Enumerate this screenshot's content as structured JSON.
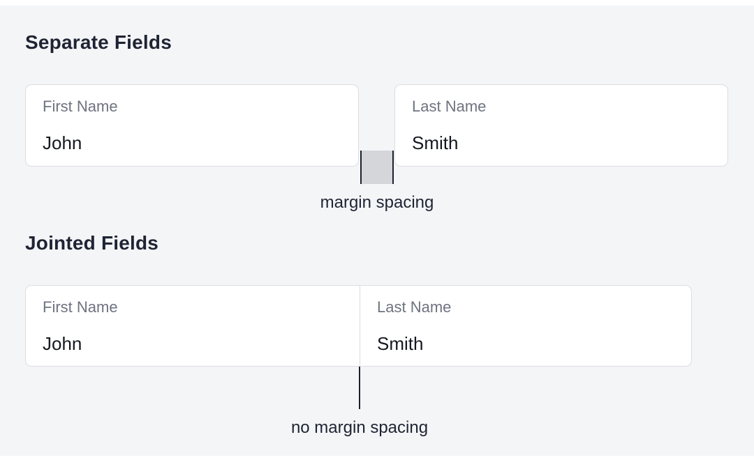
{
  "colors": {
    "page_background": "#ffffff",
    "panel_background": "#f4f5f7",
    "card_background": "#ffffff",
    "card_border": "#dcdde1",
    "heading_text": "#1e2433",
    "label_text": "#6e7380",
    "value_text": "#15181f",
    "margin_box_fill": "#d5d6da",
    "margin_box_edge": "#1b2130",
    "pointer_line": "#1b2130",
    "caption_text": "#1e2433"
  },
  "separate_section": {
    "title": "Separate Fields",
    "first_field": {
      "label": "First Name",
      "value": "John"
    },
    "last_field": {
      "label": "Last Name",
      "value": "Smith"
    },
    "caption": "margin spacing"
  },
  "jointed_section": {
    "title": "Jointed Fields",
    "first_field": {
      "label": "First Name",
      "value": "John"
    },
    "last_field": {
      "label": "Last Name",
      "value": "Smith"
    },
    "caption": "no margin spacing"
  }
}
